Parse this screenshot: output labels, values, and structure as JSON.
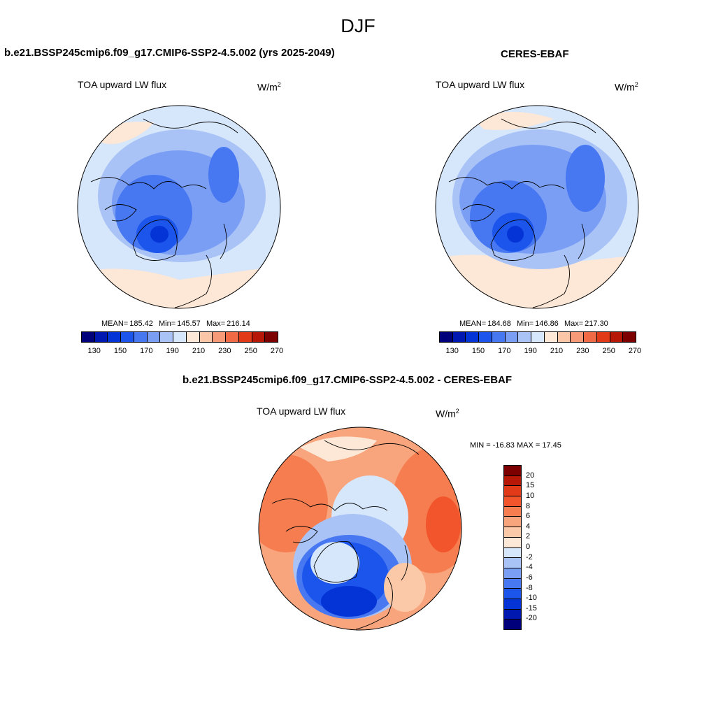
{
  "season": "DJF",
  "panels": {
    "model": {
      "title": "b.e21.BSSP245cmip6.f09_g17.CMIP6-SSP2-4.5.002 (yrs 2025-2049)",
      "variable": "TOA upward LW flux",
      "unit_base": "W/m",
      "unit_exp": "2",
      "mean_label": "MEAN=",
      "mean_value": "185.42",
      "min_label": "Min=",
      "min_value": "145.57",
      "max_label": "Max=",
      "max_value": "216.14"
    },
    "obs": {
      "title": "CERES-EBAF",
      "variable": "TOA upward LW flux",
      "unit_base": "W/m",
      "unit_exp": "2",
      "mean_label": "MEAN=",
      "mean_value": "184.68",
      "min_label": "Min=",
      "min_value": "146.86",
      "max_label": "Max=",
      "max_value": "217.30"
    },
    "diff": {
      "title": "b.e21.BSSP245cmip6.f09_g17.CMIP6-SSP2-4.5.002 - CERES-EBAF",
      "variable": "TOA upward LW flux",
      "unit_base": "W/m",
      "unit_exp": "2",
      "minmax_text": "MIN = -16.83 MAX =  17.45"
    }
  },
  "abs_colorbar": {
    "colors": [
      "#00007a",
      "#0018b0",
      "#0433d6",
      "#1c55eb",
      "#4778f2",
      "#7b9ef5",
      "#a9c3f7",
      "#d6e6fb",
      "#fde7d6",
      "#fbc6a8",
      "#f69a78",
      "#ef6a45",
      "#e03a18",
      "#b61706",
      "#7c0000"
    ],
    "tick_labels": [
      "130",
      "150",
      "170",
      "190",
      "210",
      "230",
      "250",
      "270"
    ]
  },
  "diff_colorbar": {
    "colors": [
      "#7c0000",
      "#b61706",
      "#e03a18",
      "#f2552b",
      "#f57d50",
      "#f8a47d",
      "#fbc8a8",
      "#fde7d6",
      "#d6e6fb",
      "#a9c3f7",
      "#7b9ef5",
      "#4778f2",
      "#1c55eb",
      "#0433d6",
      "#0018b0",
      "#00007a"
    ],
    "tick_labels": [
      "20",
      "15",
      "10",
      "8",
      "6",
      "4",
      "2",
      "0",
      "-2",
      "-4",
      "-6",
      "-8",
      "-10",
      "-15",
      "-20"
    ]
  }
}
